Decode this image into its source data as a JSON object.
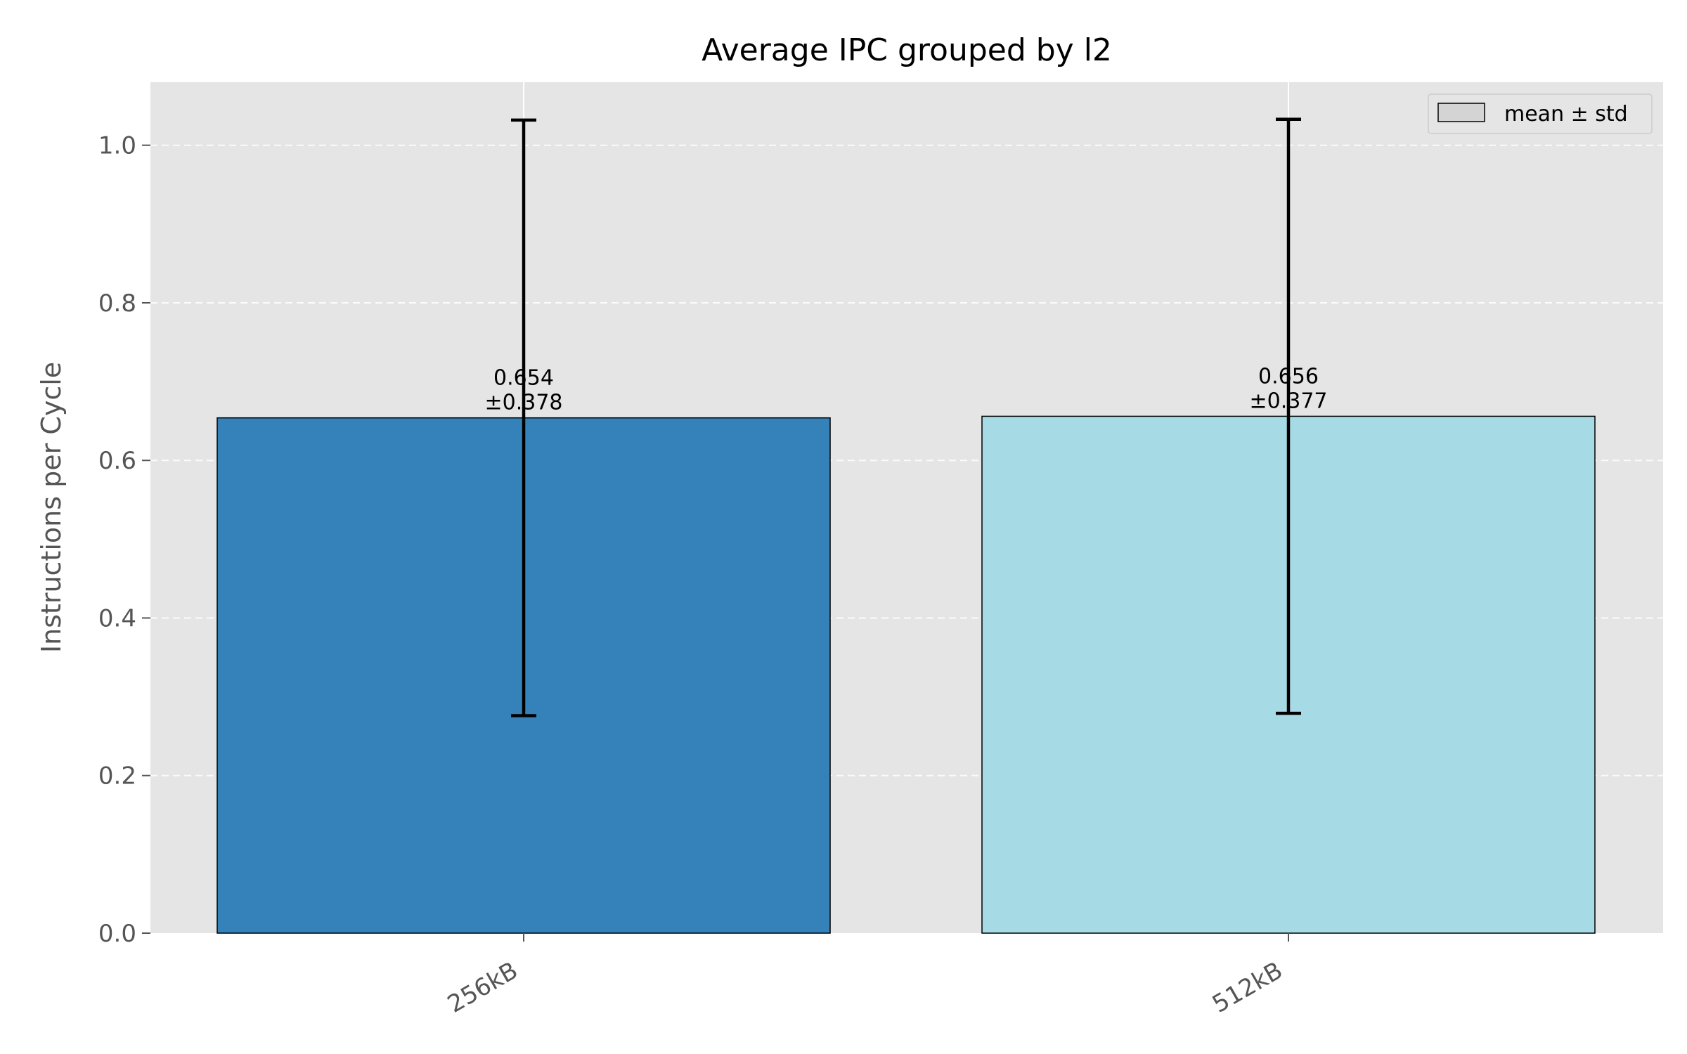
{
  "chart_data": {
    "type": "bar",
    "title": "Average IPC grouped by l2",
    "xlabel": "",
    "ylabel": "Instructions per Cycle",
    "categories": [
      "256kB",
      "512kB"
    ],
    "values": [
      0.654,
      0.656
    ],
    "errors": [
      0.378,
      0.377
    ],
    "bar_colors": [
      "#3482b9",
      "#a6dbe5"
    ],
    "value_labels": [
      "0.654",
      "0.656"
    ],
    "error_labels": [
      "±0.378",
      "±0.377"
    ],
    "ylim": [
      0,
      1.08
    ],
    "yticks": [
      0.0,
      0.2,
      0.4,
      0.6,
      0.8,
      1.0
    ],
    "ytick_labels": [
      "0.0",
      "0.2",
      "0.4",
      "0.6",
      "0.8",
      "1.0"
    ],
    "grid": true,
    "legend": {
      "placement": "top-right",
      "label": "mean ± std"
    }
  },
  "colors": {
    "plot_background": "#e5e5e5",
    "grid": "#ffffff",
    "error_bar": "#000000",
    "legend_swatch": "#d4d4d4"
  }
}
